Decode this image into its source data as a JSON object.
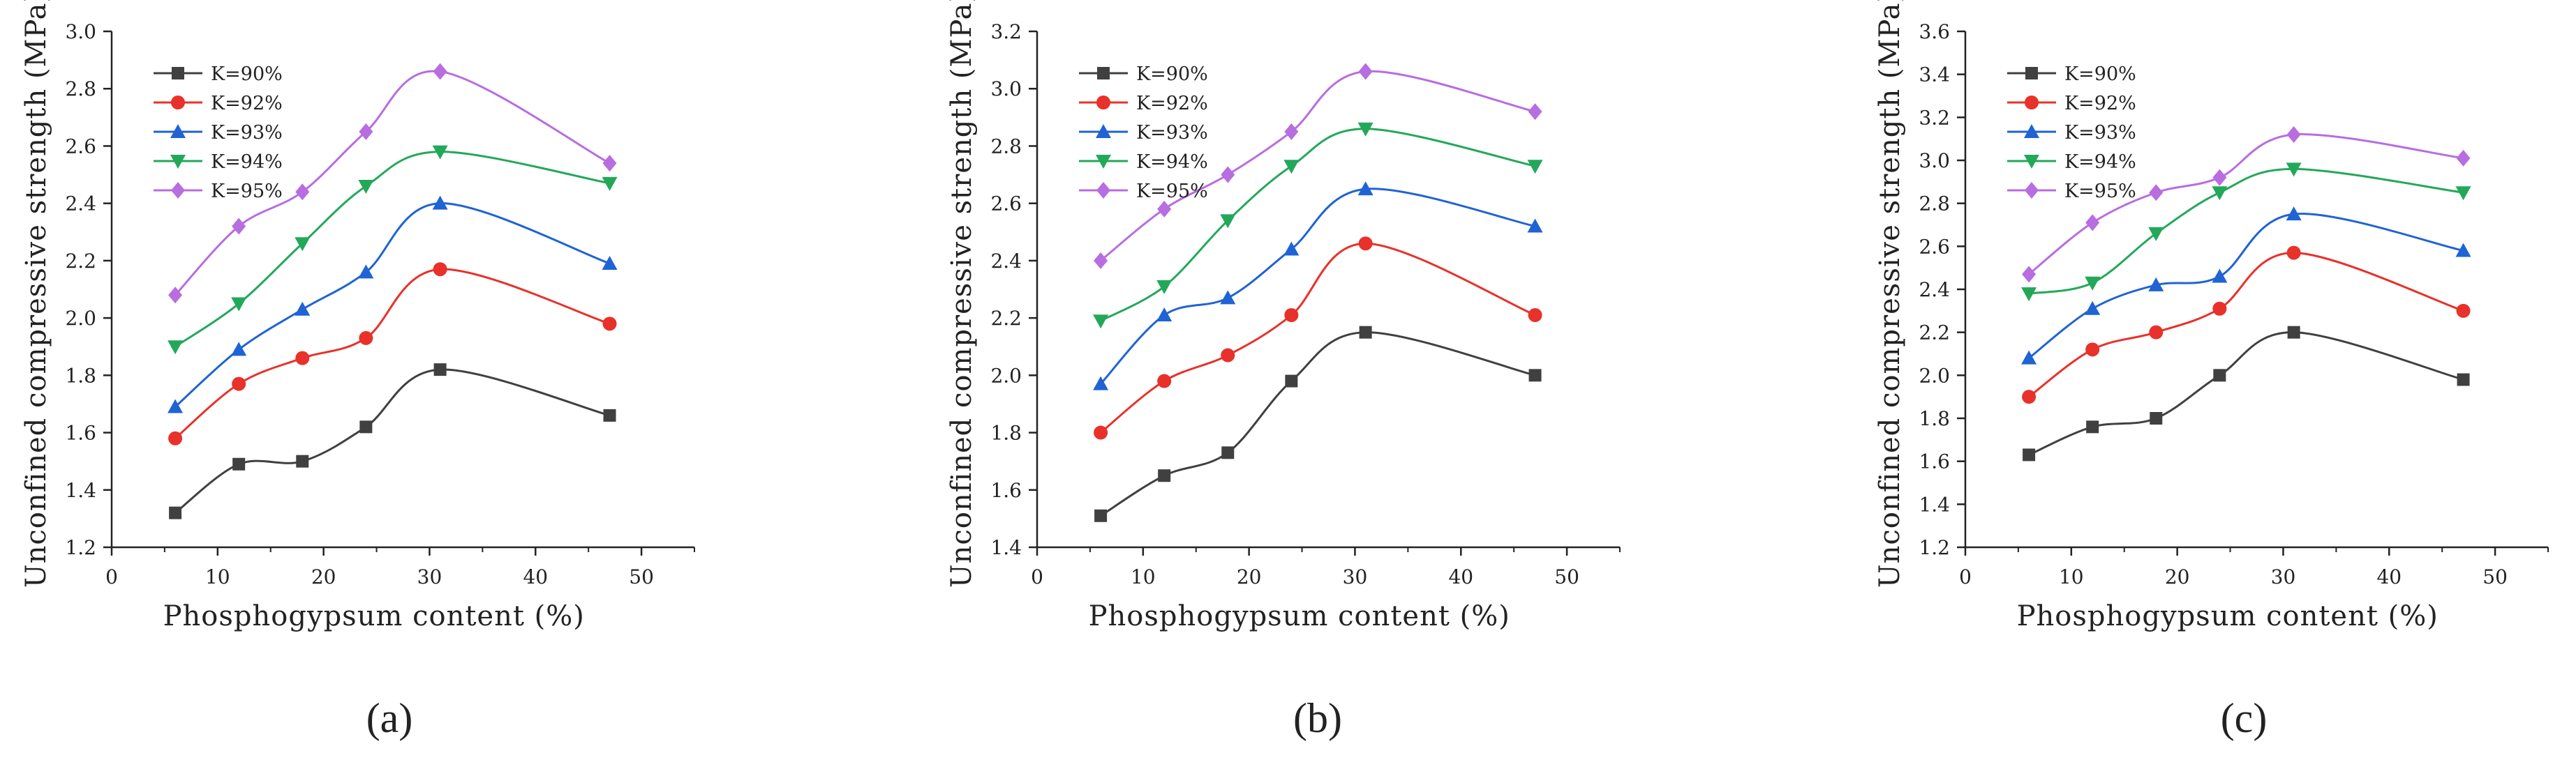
{
  "figure": {
    "panel_labels": [
      "(a)",
      "(b)",
      "(c)"
    ]
  },
  "series_colors": [
    "#404040",
    "#e8312a",
    "#1f63d4",
    "#23a85a",
    "#b86de0"
  ],
  "series_markers": [
    "square",
    "circle",
    "triangle-up",
    "triangle-down",
    "diamond"
  ],
  "chart_data": [
    {
      "type": "line",
      "panel": "(a)",
      "xlabel": "Phosphogypsum content (%)",
      "ylabel": "Unconfined compressive strength (MPa)",
      "xlim": [
        0,
        55
      ],
      "xticks": [
        0,
        10,
        20,
        30,
        40,
        50
      ],
      "ylim": [
        1.2,
        3.0
      ],
      "yticks": [
        1.2,
        1.4,
        1.6,
        1.8,
        2.0,
        2.2,
        2.4,
        2.6,
        2.8,
        3.0
      ],
      "x": [
        6,
        12,
        18,
        24,
        31,
        47
      ],
      "legend_position": "top-left",
      "series": [
        {
          "name": "K=90%",
          "values": [
            1.32,
            1.49,
            1.5,
            1.62,
            1.82,
            1.66
          ]
        },
        {
          "name": "K=92%",
          "values": [
            1.58,
            1.77,
            1.86,
            1.93,
            2.17,
            1.98
          ]
        },
        {
          "name": "K=93%",
          "values": [
            1.69,
            1.89,
            2.03,
            2.16,
            2.4,
            2.19
          ]
        },
        {
          "name": "K=94%",
          "values": [
            1.9,
            2.05,
            2.26,
            2.46,
            2.58,
            2.47
          ]
        },
        {
          "name": "K=95%",
          "values": [
            2.08,
            2.32,
            2.44,
            2.65,
            2.86,
            2.54
          ]
        }
      ]
    },
    {
      "type": "line",
      "panel": "(b)",
      "xlabel": "Phosphogypsum content (%)",
      "ylabel": "Unconfined compressive strength (MPa)",
      "xlim": [
        0,
        55
      ],
      "xticks": [
        0,
        10,
        20,
        30,
        40,
        50
      ],
      "ylim": [
        1.4,
        3.2
      ],
      "yticks": [
        1.4,
        1.6,
        1.8,
        2.0,
        2.2,
        2.4,
        2.6,
        2.8,
        3.0,
        3.2
      ],
      "x": [
        6,
        12,
        18,
        24,
        31,
        47
      ],
      "legend_position": "top-left",
      "series": [
        {
          "name": "K=90%",
          "values": [
            1.51,
            1.65,
            1.73,
            1.98,
            2.15,
            2.0
          ]
        },
        {
          "name": "K=92%",
          "values": [
            1.8,
            1.98,
            2.07,
            2.21,
            2.46,
            2.21
          ]
        },
        {
          "name": "K=93%",
          "values": [
            1.97,
            2.21,
            2.27,
            2.44,
            2.65,
            2.52
          ]
        },
        {
          "name": "K=94%",
          "values": [
            2.19,
            2.31,
            2.54,
            2.73,
            2.86,
            2.73
          ]
        },
        {
          "name": "K=95%",
          "values": [
            2.4,
            2.58,
            2.7,
            2.85,
            3.06,
            2.92
          ]
        }
      ]
    },
    {
      "type": "line",
      "panel": "(c)",
      "xlabel": "Phosphogypsum content (%)",
      "ylabel": "Unconfined compressive strength (MPa)",
      "xlim": [
        0,
        55
      ],
      "xticks": [
        0,
        10,
        20,
        30,
        40,
        50
      ],
      "ylim": [
        1.2,
        3.6
      ],
      "yticks": [
        1.2,
        1.4,
        1.6,
        1.8,
        2.0,
        2.2,
        2.4,
        2.6,
        2.8,
        3.0,
        3.2,
        3.4,
        3.6
      ],
      "x": [
        6,
        12,
        18,
        24,
        31,
        47
      ],
      "legend_position": "top-left",
      "series": [
        {
          "name": "K=90%",
          "values": [
            1.63,
            1.76,
            1.8,
            2.0,
            2.2,
            1.98
          ]
        },
        {
          "name": "K=92%",
          "values": [
            1.9,
            2.12,
            2.2,
            2.31,
            2.57,
            2.3
          ]
        },
        {
          "name": "K=93%",
          "values": [
            2.08,
            2.31,
            2.42,
            2.46,
            2.75,
            2.58
          ]
        },
        {
          "name": "K=94%",
          "values": [
            2.38,
            2.43,
            2.66,
            2.85,
            2.96,
            2.85
          ]
        },
        {
          "name": "K=95%",
          "values": [
            2.47,
            2.71,
            2.85,
            2.92,
            3.12,
            3.01
          ]
        }
      ]
    }
  ]
}
